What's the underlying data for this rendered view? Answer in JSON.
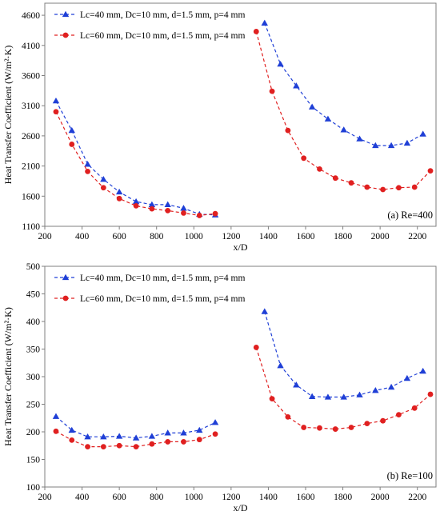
{
  "chart_data": [
    {
      "type": "line",
      "panel_label": "(a) Re=400",
      "xlabel": "x/D",
      "ylabel": "Heat Transfer Coefficient (W/m²·K)",
      "xlim": [
        200,
        2300
      ],
      "ylim": [
        1100,
        4800
      ],
      "xticks": [
        "200",
        "400",
        "600",
        "800",
        "1000",
        "1200",
        "1400",
        "1600",
        "1800",
        "2000",
        "2200"
      ],
      "yticks": [
        "1100",
        "1600",
        "2100",
        "2600",
        "3100",
        "3600",
        "4100",
        "4600"
      ],
      "legend_position": "top-left",
      "series": [
        {
          "name": "Lc=40 mm, Dc=10 mm, d=1.5 mm, p=4 mm",
          "color": "#1f3fd6",
          "marker": "triangle",
          "segments": [
            {
              "x": [
                260,
                345,
                430,
                515,
                600,
                690,
                775,
                860,
                945,
                1030,
                1115
              ],
              "y": [
                3180,
                2690,
                2130,
                1880,
                1670,
                1510,
                1460,
                1460,
                1400,
                1300,
                1290
              ]
            },
            {
              "x": [
                1380,
                1465,
                1550,
                1635,
                1720,
                1805,
                1890,
                1975,
                2060,
                2145,
                2230
              ],
              "y": [
                4470,
                3790,
                3430,
                3080,
                2880,
                2700,
                2550,
                2440,
                2440,
                2480,
                2630
              ]
            }
          ]
        },
        {
          "name": "Lc=60 mm, Dc=10 mm, d=1.5 mm, p=4 mm",
          "color": "#e02020",
          "marker": "circle",
          "segments": [
            {
              "x": [
                260,
                345,
                430,
                515,
                600,
                690,
                775,
                860,
                945,
                1030,
                1115
              ],
              "y": [
                3000,
                2460,
                2010,
                1740,
                1560,
                1440,
                1390,
                1360,
                1320,
                1280,
                1310
              ]
            },
            {
              "x": [
                1335,
                1420,
                1505,
                1590,
                1675,
                1760,
                1845,
                1930,
                2015,
                2100,
                2185,
                2270
              ],
              "y": [
                4330,
                3340,
                2690,
                2230,
                2050,
                1900,
                1820,
                1750,
                1710,
                1740,
                1750,
                2020
              ]
            }
          ]
        }
      ]
    },
    {
      "type": "line",
      "panel_label": "(b) Re=100",
      "xlabel": "x/D",
      "ylabel": "Heat Transfer Coefficient (W/m²·K)",
      "xlim": [
        200,
        2300
      ],
      "ylim": [
        100,
        500
      ],
      "xticks": [
        "200",
        "400",
        "600",
        "800",
        "1000",
        "1200",
        "1400",
        "1600",
        "1800",
        "2000",
        "2200"
      ],
      "yticks": [
        "100",
        "150",
        "200",
        "250",
        "300",
        "350",
        "400",
        "450",
        "500"
      ],
      "legend_position": "top-left",
      "series": [
        {
          "name": "Lc=40 mm, Dc=10 mm, d=1.5 mm, p=4 mm",
          "color": "#1f3fd6",
          "marker": "triangle",
          "segments": [
            {
              "x": [
                260,
                345,
                430,
                515,
                600,
                690,
                775,
                860,
                945,
                1030,
                1115
              ],
              "y": [
                228,
                203,
                191,
                191,
                192,
                189,
                192,
                198,
                198,
                203,
                217
              ]
            },
            {
              "x": [
                1380,
                1465,
                1550,
                1635,
                1720,
                1805,
                1890,
                1975,
                2060,
                2145,
                2230
              ],
              "y": [
                418,
                320,
                285,
                264,
                263,
                263,
                267,
                275,
                281,
                297,
                310
              ]
            }
          ]
        },
        {
          "name": "Lc=60 mm, Dc=10 mm, d=1.5 mm, p=4 mm",
          "color": "#e02020",
          "marker": "circle",
          "segments": [
            {
              "x": [
                260,
                345,
                430,
                515,
                600,
                690,
                775,
                860,
                945,
                1030,
                1115
              ],
              "y": [
                201,
                185,
                173,
                173,
                175,
                173,
                178,
                182,
                182,
                186,
                196
              ]
            },
            {
              "x": [
                1335,
                1420,
                1505,
                1590,
                1675,
                1760,
                1845,
                1930,
                2015,
                2100,
                2185,
                2270
              ],
              "y": [
                353,
                260,
                227,
                208,
                207,
                205,
                208,
                215,
                220,
                231,
                243,
                268
              ]
            }
          ]
        }
      ]
    }
  ]
}
